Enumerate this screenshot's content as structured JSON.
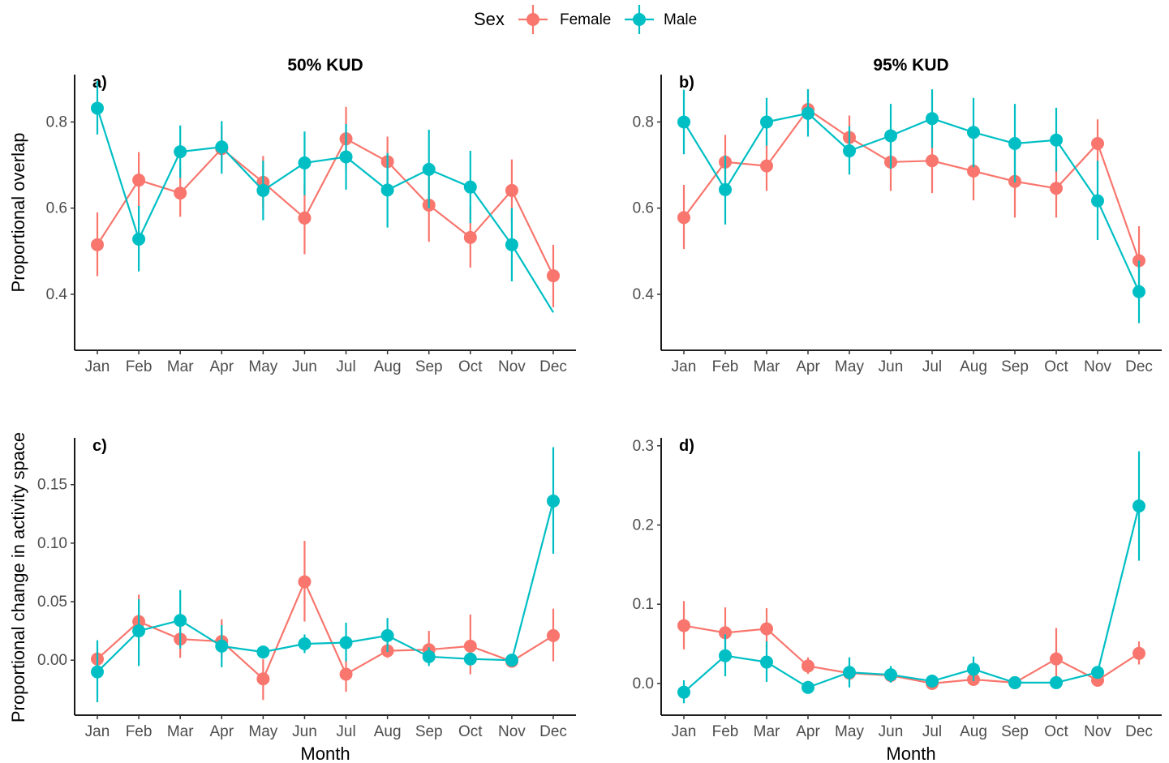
{
  "legend": {
    "title": "Sex",
    "items": [
      {
        "label": "Female",
        "color": "#F8766D"
      },
      {
        "label": "Male",
        "color": "#00BFC4"
      }
    ]
  },
  "column_titles": [
    "50% KUD",
    "95% KUD"
  ],
  "y_axis_labels": [
    "Proportional overlap",
    "Proportional change in activity space"
  ],
  "x_axis_label": "Month",
  "chart_data": [
    {
      "type": "line",
      "tag": "a)",
      "categories": [
        "Jan",
        "Feb",
        "Mar",
        "Apr",
        "May",
        "Jun",
        "Jul",
        "Aug",
        "Sep",
        "Oct",
        "Nov",
        "Dec"
      ],
      "ylim": [
        0.27,
        0.91
      ],
      "yticks": [
        0.4,
        0.6,
        0.8
      ],
      "ytick_labels": [
        "0.4",
        "0.6",
        "0.8"
      ],
      "series": [
        {
          "name": "Female",
          "color": "#F8766D",
          "values": [
            0.515,
            0.665,
            0.635,
            0.738,
            0.66,
            0.577,
            0.761,
            0.708,
            0.607,
            0.532,
            0.641,
            0.443
          ],
          "lower": [
            0.442,
            0.6,
            0.58,
            0.69,
            0.6,
            0.493,
            0.69,
            0.645,
            0.522,
            0.462,
            0.568,
            0.37
          ],
          "upper": [
            0.59,
            0.73,
            0.692,
            0.79,
            0.721,
            0.655,
            0.835,
            0.766,
            0.69,
            0.604,
            0.713,
            0.515
          ]
        },
        {
          "name": "Male",
          "color": "#00BFC4",
          "values": [
            0.832,
            0.528,
            0.731,
            0.742,
            0.641,
            0.705,
            0.719,
            0.642,
            0.69,
            0.649,
            0.515,
            0.358
          ],
          "lower": [
            0.771,
            0.453,
            0.67,
            0.68,
            0.572,
            0.63,
            0.643,
            0.555,
            0.6,
            0.565,
            0.43,
            0.358
          ],
          "upper": [
            0.895,
            0.605,
            0.792,
            0.802,
            0.71,
            0.778,
            0.795,
            0.728,
            0.782,
            0.733,
            0.6,
            0.358
          ],
          "hide_point": [
            false,
            false,
            false,
            false,
            false,
            false,
            false,
            false,
            false,
            false,
            false,
            true
          ]
        }
      ]
    },
    {
      "type": "line",
      "tag": "b)",
      "categories": [
        "Jan",
        "Feb",
        "Mar",
        "Apr",
        "May",
        "Jun",
        "Jul",
        "Aug",
        "Sep",
        "Oct",
        "Nov",
        "Dec"
      ],
      "ylim": [
        0.27,
        0.91
      ],
      "yticks": [
        0.4,
        0.6,
        0.8
      ],
      "ytick_labels": [
        "0.4",
        "0.6",
        "0.8"
      ],
      "series": [
        {
          "name": "Female",
          "color": "#F8766D",
          "values": [
            0.578,
            0.707,
            0.698,
            0.829,
            0.764,
            0.707,
            0.71,
            0.686,
            0.662,
            0.646,
            0.75,
            0.478
          ],
          "lower": [
            0.505,
            0.645,
            0.64,
            0.785,
            0.715,
            0.64,
            0.635,
            0.618,
            0.578,
            0.578,
            0.69,
            0.4
          ],
          "upper": [
            0.654,
            0.77,
            0.757,
            0.875,
            0.815,
            0.776,
            0.786,
            0.756,
            0.748,
            0.715,
            0.806,
            0.558
          ]
        },
        {
          "name": "Male",
          "color": "#00BFC4",
          "values": [
            0.8,
            0.643,
            0.8,
            0.82,
            0.733,
            0.768,
            0.808,
            0.776,
            0.75,
            0.758,
            0.617,
            0.406
          ],
          "lower": [
            0.725,
            0.562,
            0.745,
            0.766,
            0.678,
            0.692,
            0.74,
            0.695,
            0.66,
            0.685,
            0.526,
            0.333
          ],
          "upper": [
            0.875,
            0.722,
            0.856,
            0.876,
            0.79,
            0.842,
            0.876,
            0.856,
            0.842,
            0.833,
            0.71,
            0.478
          ]
        }
      ]
    },
    {
      "type": "line",
      "tag": "c)",
      "categories": [
        "Jan",
        "Feb",
        "Mar",
        "Apr",
        "May",
        "Jun",
        "Jul",
        "Aug",
        "Sep",
        "Oct",
        "Nov",
        "Dec"
      ],
      "ylim": [
        -0.047,
        0.19
      ],
      "yticks": [
        0.0,
        0.05,
        0.1,
        0.15
      ],
      "ytick_labels": [
        "0.00",
        "0.05",
        "0.10",
        "0.15"
      ],
      "series": [
        {
          "name": "Female",
          "color": "#F8766D",
          "values": [
            0.001,
            0.033,
            0.018,
            0.016,
            -0.016,
            0.067,
            -0.012,
            0.008,
            0.009,
            0.012,
            -0.001,
            0.021
          ],
          "lower": [
            -0.008,
            0.012,
            0.002,
            0.002,
            -0.034,
            0.033,
            -0.027,
            0.002,
            0.0,
            -0.012,
            -0.005,
            -0.001
          ],
          "upper": [
            0.01,
            0.056,
            0.035,
            0.035,
            0.001,
            0.102,
            0.002,
            0.015,
            0.025,
            0.039,
            0.003,
            0.044
          ]
        },
        {
          "name": "Male",
          "color": "#00BFC4",
          "values": [
            -0.01,
            0.025,
            0.034,
            0.012,
            0.007,
            0.014,
            0.015,
            0.021,
            0.003,
            0.001,
            0.0,
            0.136
          ],
          "lower": [
            -0.036,
            -0.005,
            0.01,
            -0.006,
            0.002,
            0.006,
            -0.001,
            0.007,
            -0.005,
            -0.004,
            -0.003,
            0.091
          ],
          "upper": [
            0.017,
            0.052,
            0.06,
            0.03,
            0.012,
            0.022,
            0.032,
            0.036,
            0.011,
            0.006,
            0.003,
            0.182
          ]
        }
      ]
    },
    {
      "type": "line",
      "tag": "d)",
      "categories": [
        "Jan",
        "Feb",
        "Mar",
        "Apr",
        "May",
        "Jun",
        "Jul",
        "Aug",
        "Sep",
        "Oct",
        "Nov",
        "Dec"
      ],
      "ylim": [
        -0.04,
        0.31
      ],
      "yticks": [
        0.0,
        0.1,
        0.2,
        0.3
      ],
      "ytick_labels": [
        "0.0",
        "0.1",
        "0.2",
        "0.3"
      ],
      "series": [
        {
          "name": "Female",
          "color": "#F8766D",
          "values": [
            0.073,
            0.064,
            0.069,
            0.022,
            0.013,
            0.01,
            0.0,
            0.005,
            0.001,
            0.031,
            0.004,
            0.038
          ],
          "lower": [
            0.043,
            0.036,
            0.045,
            0.012,
            0.003,
            0.002,
            -0.004,
            0.0,
            -0.003,
            0.0,
            -0.002,
            0.024
          ],
          "upper": [
            0.104,
            0.096,
            0.095,
            0.033,
            0.023,
            0.018,
            0.005,
            0.01,
            0.005,
            0.07,
            0.01,
            0.053
          ]
        },
        {
          "name": "Male",
          "color": "#00BFC4",
          "values": [
            -0.011,
            0.035,
            0.027,
            -0.005,
            0.014,
            0.011,
            0.003,
            0.018,
            0.001,
            0.001,
            0.014,
            0.224
          ],
          "lower": [
            -0.025,
            0.009,
            0.002,
            -0.01,
            -0.005,
            0.001,
            -0.002,
            0.003,
            -0.002,
            -0.002,
            0.006,
            0.155
          ],
          "upper": [
            0.004,
            0.062,
            0.053,
            0.001,
            0.033,
            0.022,
            0.008,
            0.034,
            0.004,
            0.004,
            0.021,
            0.293
          ]
        }
      ]
    }
  ]
}
